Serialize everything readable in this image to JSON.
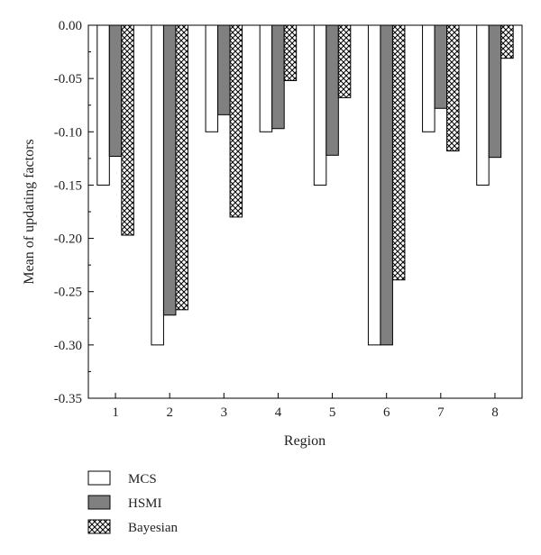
{
  "chart_data": {
    "type": "bar",
    "xlabel": "Region",
    "ylabel": "Mean of updating factors",
    "categories": [
      "1",
      "2",
      "3",
      "4",
      "5",
      "6",
      "7",
      "8"
    ],
    "ylim": [
      -0.35,
      0.0
    ],
    "yticks": [
      0.0,
      -0.05,
      -0.1,
      -0.15,
      -0.2,
      -0.25,
      -0.3,
      -0.35
    ],
    "ytick_labels": [
      "0.00",
      "-0.05",
      "-0.10",
      "-0.15",
      "-0.20",
      "-0.25",
      "-0.30",
      "-0.35"
    ],
    "grid": false,
    "legend_position": "bottom-left",
    "series": [
      {
        "name": "MCS",
        "fill": "white",
        "values": [
          -0.15,
          -0.3,
          -0.1,
          -0.1,
          -0.15,
          -0.3,
          -0.1,
          -0.15
        ]
      },
      {
        "name": "HSMI",
        "fill": "gray",
        "values": [
          -0.123,
          -0.272,
          -0.084,
          -0.097,
          -0.122,
          -0.3,
          -0.078,
          -0.124
        ]
      },
      {
        "name": "Bayesian",
        "fill": "crosshatch",
        "values": [
          -0.197,
          -0.267,
          -0.18,
          -0.052,
          -0.068,
          -0.239,
          -0.118,
          -0.031
        ]
      }
    ],
    "colors": {
      "hsmi_fill": "#808080",
      "stroke": "#000000"
    }
  }
}
